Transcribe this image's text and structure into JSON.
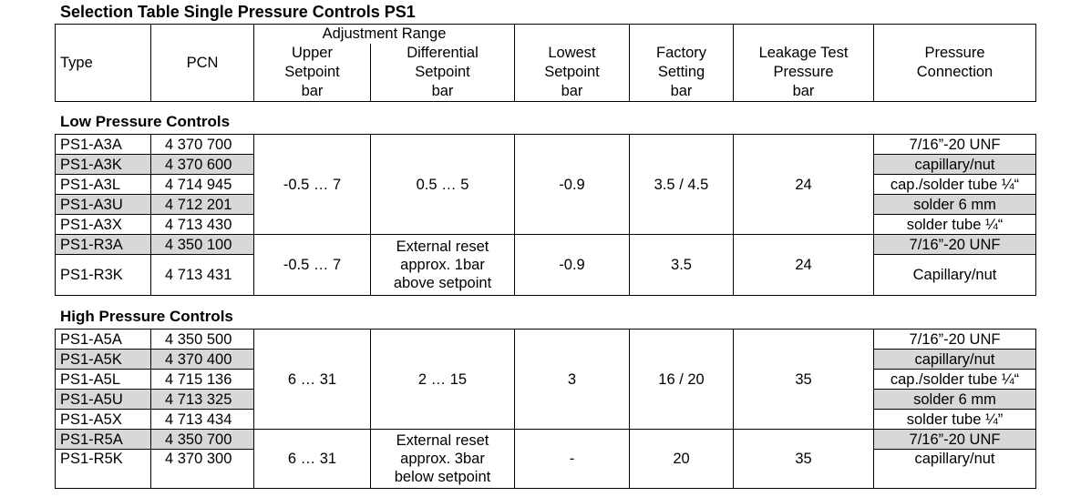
{
  "title": "Selection Table Single Pressure Controls PS1",
  "header": {
    "type": "Type",
    "pcn": "PCN",
    "adjustment_range": "Adjustment Range",
    "upper_setpoint": [
      "Upper",
      "Setpoint",
      "bar"
    ],
    "differential_setpoint": [
      "Differential",
      "Setpoint",
      "bar"
    ],
    "lowest_setpoint": [
      "Lowest",
      "Setpoint",
      "bar"
    ],
    "factory_setting": [
      "Factory",
      "Setting",
      "bar"
    ],
    "leakage_test": [
      "Leakage Test",
      "Pressure",
      "bar"
    ],
    "pressure_connection": [
      "Pressure",
      "Connection"
    ]
  },
  "low": {
    "section_title": "Low Pressure Controls",
    "group_a": {
      "upper": "-0.5 … 7",
      "differential": "0.5 … 5",
      "lowest": "-0.9",
      "factory": "3.5 / 4.5",
      "leakage": "24",
      "rows": [
        {
          "type": "PS1-A3A",
          "pcn": "4 370 700",
          "conn": "7/16”-20 UNF"
        },
        {
          "type": "PS1-A3K",
          "pcn": "4 370 600",
          "conn": "capillary/nut"
        },
        {
          "type": "PS1-A3L",
          "pcn": "4 714 945",
          "conn": "cap./solder tube ¼“"
        },
        {
          "type": "PS1-A3U",
          "pcn": "4 712 201",
          "conn": "solder 6 mm"
        },
        {
          "type": "PS1-A3X",
          "pcn": "4 713 430",
          "conn": "solder tube ¼“"
        }
      ]
    },
    "group_r": {
      "upper": "-0.5 … 7",
      "differential": [
        "External reset",
        "approx. 1bar",
        "above setpoint"
      ],
      "lowest": "-0.9",
      "factory": "3.5",
      "leakage": "24",
      "rows": [
        {
          "type": "PS1-R3A",
          "pcn": "4 350 100",
          "conn": "7/16”-20 UNF"
        },
        {
          "type": "PS1-R3K",
          "pcn": "4 713 431",
          "conn": "Capillary/nut"
        }
      ]
    }
  },
  "high": {
    "section_title": "High Pressure Controls",
    "group_a": {
      "upper": "6 … 31",
      "differential": "2 … 15",
      "lowest": "3",
      "factory": "16 / 20",
      "leakage": "35",
      "rows": [
        {
          "type": "PS1-A5A",
          "pcn": "4 350 500",
          "conn": "7/16”-20 UNF"
        },
        {
          "type": "PS1-A5K",
          "pcn": "4 370 400",
          "conn": "capillary/nut"
        },
        {
          "type": "PS1-A5L",
          "pcn": "4 715 136",
          "conn": "cap./solder tube ¼“"
        },
        {
          "type": "PS1-A5U",
          "pcn": "4 713 325",
          "conn": "solder 6 mm"
        },
        {
          "type": "PS1-A5X",
          "pcn": "4 713 434",
          "conn": "solder tube ¼”"
        }
      ]
    },
    "group_r": {
      "upper": "6 … 31",
      "differential": [
        "External reset",
        "approx. 3bar",
        "below setpoint"
      ],
      "lowest": "-",
      "factory": "20",
      "leakage": "35",
      "rows": [
        {
          "type": "PS1-R5A",
          "pcn": "4 350 700",
          "conn": "7/16”-20 UNF"
        },
        {
          "type": "PS1-R5K",
          "pcn": "4 370 300",
          "conn": "capillary/nut"
        }
      ]
    }
  }
}
